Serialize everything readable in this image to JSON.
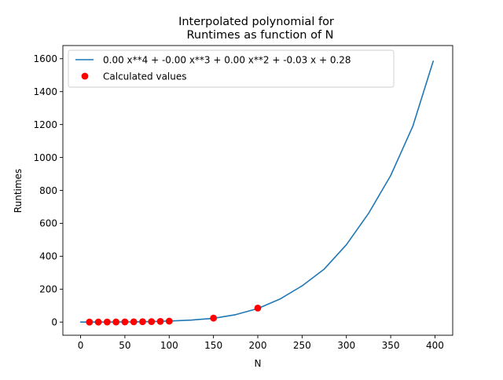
{
  "chart_data": {
    "type": "line",
    "title_line1": "Interpolated polynomial for",
    "title_line2": "Runtimes as function of N",
    "xlabel": "N",
    "ylabel": "Runtimes",
    "xlim": [
      -20,
      420
    ],
    "ylim": [
      -80,
      1680
    ],
    "xticks": [
      0,
      50,
      100,
      150,
      200,
      250,
      300,
      350,
      400
    ],
    "yticks": [
      0,
      200,
      400,
      600,
      800,
      1000,
      1200,
      1400,
      1600
    ],
    "legend_position": "upper-left",
    "series": [
      {
        "name": "0.00 x**4 + -0.00 x**3 + 0.00 x**2 + -0.03 x + 0.28",
        "kind": "line",
        "color": "#1f77b4",
        "x": [
          0,
          25,
          50,
          75,
          100,
          125,
          150,
          175,
          200,
          225,
          250,
          275,
          300,
          325,
          350,
          375,
          398
        ],
        "y": [
          0.3,
          0.4,
          1.0,
          2.5,
          6.0,
          12.3,
          23.0,
          45.0,
          82.0,
          140.0,
          220.0,
          322.0,
          470.0,
          660.0,
          890.0,
          1190.0,
          1585.0
        ]
      },
      {
        "name": "Calculated values",
        "kind": "scatter",
        "color": "#ff0000",
        "x": [
          10,
          20,
          30,
          40,
          50,
          60,
          70,
          80,
          90,
          100,
          150,
          200
        ],
        "y": [
          0.1,
          0.2,
          0.4,
          0.7,
          1.1,
          1.6,
          2.2,
          3.0,
          4.2,
          5.5,
          24.0,
          85.0
        ]
      }
    ]
  }
}
